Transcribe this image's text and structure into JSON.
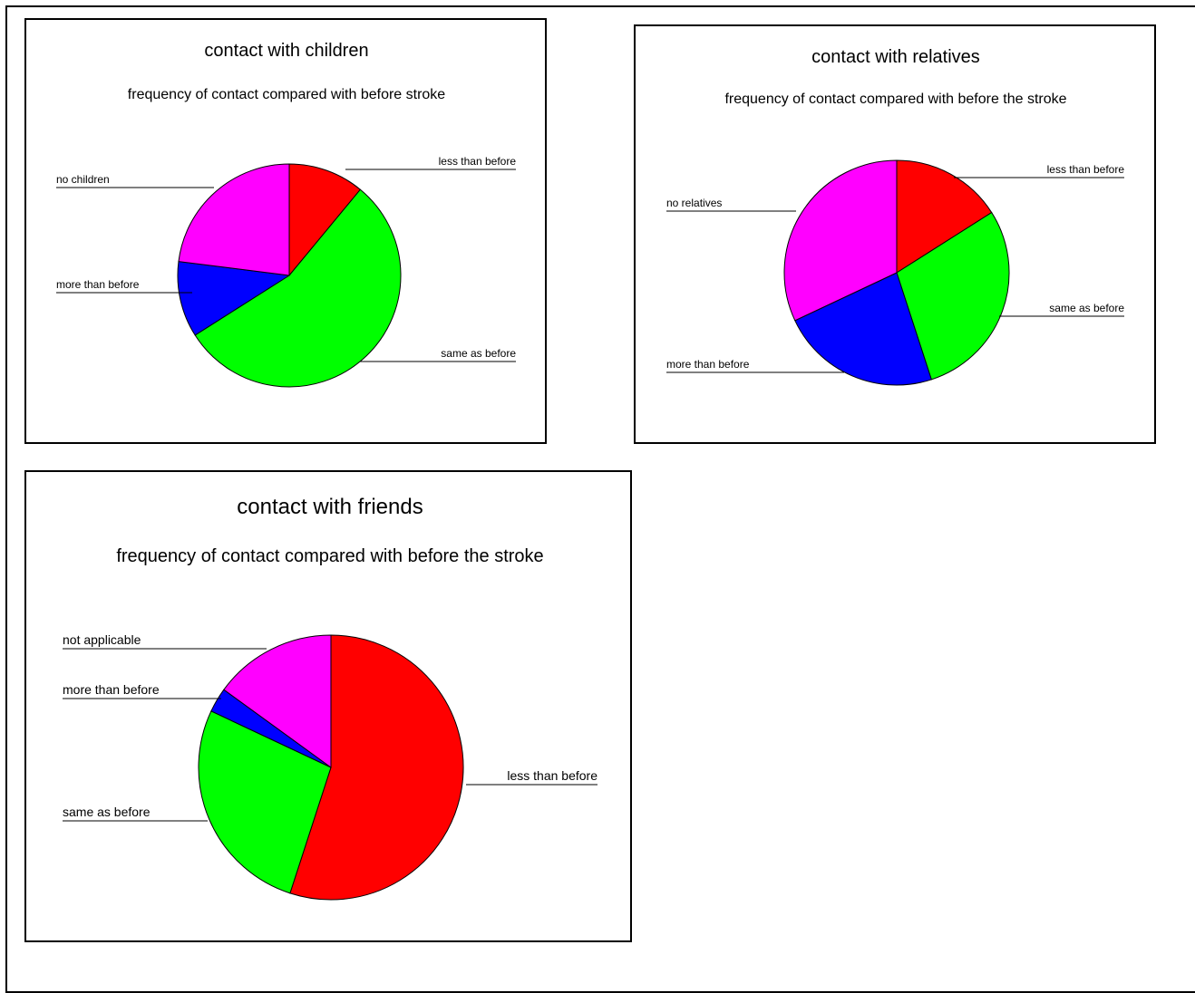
{
  "chart_data": [
    {
      "type": "pie",
      "title": "contact with children",
      "subtitle": "frequency of contact compared with before stroke",
      "slices": [
        {
          "label": "less than before",
          "value": 11,
          "color": "#ff0000"
        },
        {
          "label": "same as before",
          "value": 55,
          "color": "#00ff00"
        },
        {
          "label": "more than before",
          "value": 11,
          "color": "#0000ff"
        },
        {
          "label": "no children",
          "value": 23,
          "color": "#ff00ff"
        }
      ],
      "start": "12 o'clock, clockwise"
    },
    {
      "type": "pie",
      "title": "contact with relatives",
      "subtitle": "frequency of contact compared with before the stroke",
      "slices": [
        {
          "label": "less than before",
          "value": 16,
          "color": "#ff0000"
        },
        {
          "label": "same as before",
          "value": 29,
          "color": "#00ff00"
        },
        {
          "label": "more than before",
          "value": 23,
          "color": "#0000ff"
        },
        {
          "label": "no relatives",
          "value": 32,
          "color": "#ff00ff"
        }
      ],
      "start": "12 o'clock, clockwise"
    },
    {
      "type": "pie",
      "title": "contact with friends",
      "subtitle": "frequency of contact compared with before the stroke",
      "slices": [
        {
          "label": "less than before",
          "value": 55,
          "color": "#ff0000"
        },
        {
          "label": "same as before",
          "value": 27,
          "color": "#00ff00"
        },
        {
          "label": "more than before",
          "value": 3,
          "color": "#0000ff"
        },
        {
          "label": "not applicable",
          "value": 15,
          "color": "#ff00ff"
        }
      ],
      "start": "12 o'clock, clockwise"
    }
  ]
}
